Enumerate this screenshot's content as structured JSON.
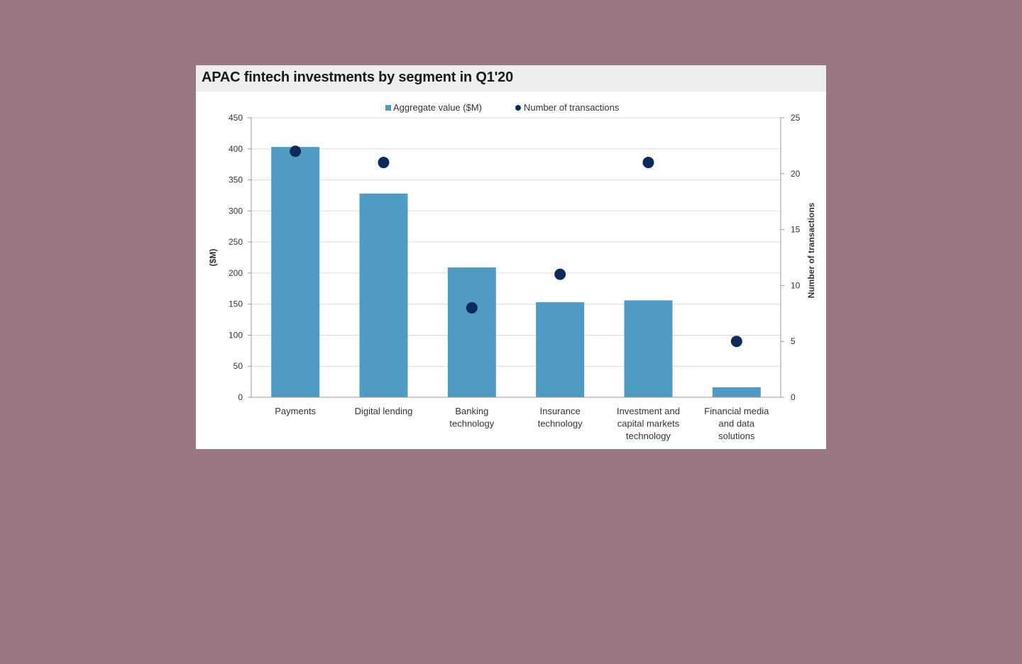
{
  "chart_data": {
    "type": "bar+scatter",
    "title": "APAC fintech investments by segment in Q1'20",
    "categories": [
      [
        "Payments"
      ],
      [
        "Digital lending"
      ],
      [
        "Banking",
        "technology"
      ],
      [
        "Insurance",
        "technology"
      ],
      [
        "Investment and",
        "capital markets",
        "technology"
      ],
      [
        "Financial media",
        "and data",
        "solutions"
      ]
    ],
    "series": [
      {
        "name": "Aggregate value ($M)",
        "type": "bar",
        "axis": "left",
        "color": "#4f9bc4",
        "values": [
          403,
          328,
          209,
          153,
          156,
          16
        ]
      },
      {
        "name": "Number of transactions",
        "type": "scatter",
        "axis": "right",
        "color": "#0d2a5c",
        "values": [
          22,
          21,
          8,
          11,
          21,
          5
        ]
      }
    ],
    "ylabel": "($M)",
    "y2label": "Number of transactions",
    "ylim": [
      0,
      450
    ],
    "y2lim": [
      0,
      25
    ],
    "yticks": [
      "0",
      "50",
      "100",
      "150",
      "200",
      "250",
      "300",
      "350",
      "400",
      "450"
    ],
    "y2ticks": [
      "0",
      "5",
      "10",
      "15",
      "20",
      "25"
    ],
    "grid": true,
    "legend": "top-center"
  }
}
